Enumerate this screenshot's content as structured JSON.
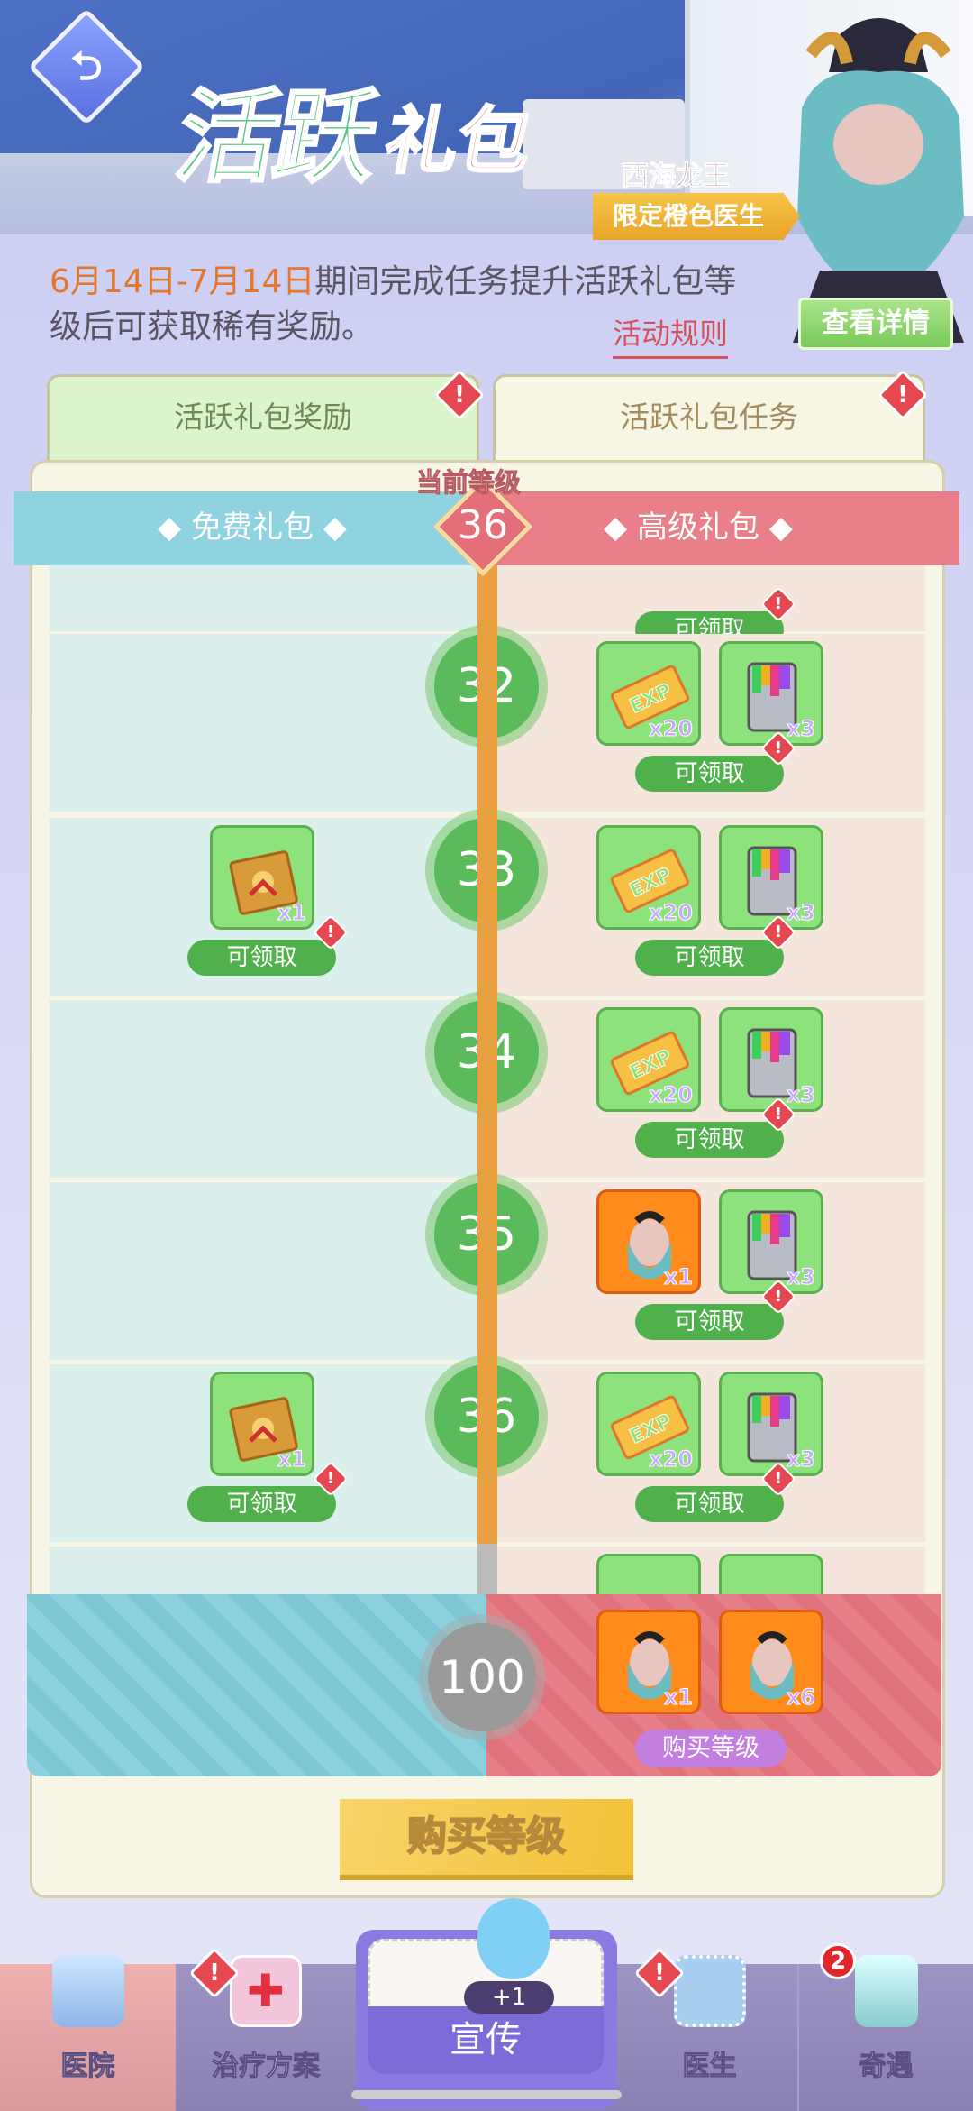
{
  "header": {
    "title_part1": "活跃",
    "title_part2": "礼包",
    "back_icon": "back-arrow-icon",
    "hero_name": "西海龙王",
    "hero_badge": "限定橙色医生",
    "detail_button": "查看详情"
  },
  "description": {
    "date_range": "6月14日-7月14日",
    "text": "期间完成任务提升活跃礼包等级后可获取稀有奖励。",
    "rules_link": "活动规则"
  },
  "tabs": [
    {
      "label": "活跃礼包奖励",
      "alert": "!"
    },
    {
      "label": "活跃礼包任务",
      "alert": "!"
    }
  ],
  "track": {
    "free_label": "◆ 免费礼包 ◆",
    "premium_label": "◆ 高级礼包 ◆",
    "current_level_label": "当前等级",
    "current_level": "36"
  },
  "claim_label": "可领取",
  "rows": [
    {
      "level": "32",
      "free": [],
      "premium": [
        {
          "icon": "exp-ticket",
          "qty": "x20"
        },
        {
          "icon": "paint-bucket",
          "qty": "x3"
        }
      ]
    },
    {
      "level": "33",
      "free": [
        {
          "icon": "gift-box",
          "qty": "x1"
        }
      ],
      "premium": [
        {
          "icon": "exp-ticket",
          "qty": "x20"
        },
        {
          "icon": "paint-bucket",
          "qty": "x3"
        }
      ]
    },
    {
      "level": "34",
      "free": [],
      "premium": [
        {
          "icon": "exp-ticket",
          "qty": "x20"
        },
        {
          "icon": "paint-bucket",
          "qty": "x3"
        }
      ]
    },
    {
      "level": "35",
      "free": [],
      "premium": [
        {
          "icon": "dragon-king-card",
          "qty": "x1"
        },
        {
          "icon": "paint-bucket",
          "qty": "x3"
        }
      ]
    },
    {
      "level": "36",
      "free": [
        {
          "icon": "gift-box",
          "qty": "x1"
        }
      ],
      "premium": [
        {
          "icon": "exp-ticket",
          "qty": "x20"
        },
        {
          "icon": "paint-bucket",
          "qty": "x3"
        }
      ]
    }
  ],
  "final_reward": {
    "level": "100",
    "premium": [
      {
        "icon": "dragon-king-card",
        "qty": "x1"
      },
      {
        "icon": "dragon-king-fragment",
        "qty": "x6"
      }
    ],
    "buy_label": "购买等级"
  },
  "buy_level_button": "购买等级",
  "bottom_nav": [
    {
      "label": "医院",
      "selected": true
    },
    {
      "label": "治疗方案",
      "alert": "!"
    },
    {
      "label": "宣传",
      "badge": "+1"
    },
    {
      "label": "医生",
      "alert": "!"
    },
    {
      "label": "奇遇",
      "count": "2"
    }
  ],
  "colors": {
    "free": "#8fd2e0",
    "premium": "#e97f88",
    "claim": "#4fb04c",
    "level_circle": "#5bbb5b",
    "track": "#e8a040"
  }
}
